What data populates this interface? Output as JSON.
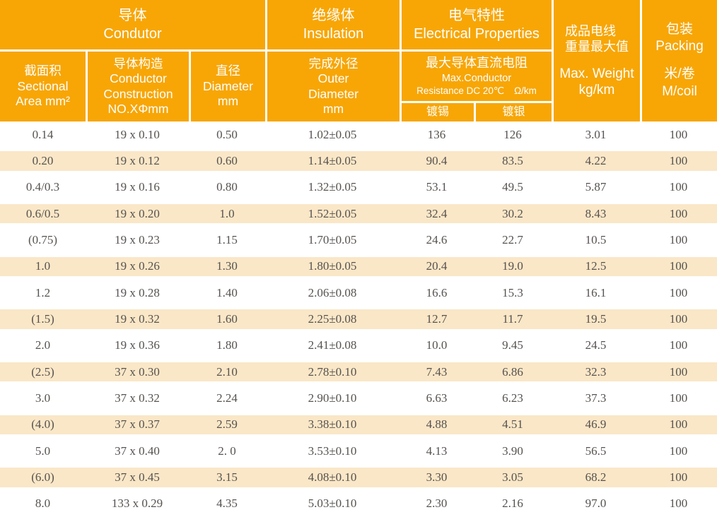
{
  "colors": {
    "accent": "#f7a606",
    "row_shade": "#fae7c7",
    "data_text": "#56524f",
    "header_text": "#ffffff"
  },
  "header": {
    "conductor": {
      "zh": "导体",
      "en": "Condutor"
    },
    "insulation": {
      "zh": "绝缘体",
      "en": "Insulation"
    },
    "electrical": {
      "zh": "电气特性",
      "en": "Electrical Properties"
    },
    "weight": {
      "zh1": "成品电线",
      "zh2": "重量最大值",
      "en1": "Max. Weight",
      "en2": "kg/km"
    },
    "packing": {
      "zh": "包装",
      "en": "Packing",
      "unit_zh": "米/卷",
      "unit_en": "M/coil"
    },
    "sectional": {
      "zh": "截面积",
      "en1": "Sectional",
      "en2": "Area mm²"
    },
    "construction": {
      "zh": "导体构造",
      "en1": "Conductor",
      "en2": "Construction",
      "en3": "NO.XΦmm"
    },
    "diameter": {
      "zh": "直径",
      "en1": "Diameter",
      "en2": "mm"
    },
    "outer": {
      "zh": "完成外径",
      "en1": "Outer",
      "en2": "Diameter",
      "en3": "mm"
    },
    "resistance": {
      "zh": "最大导体直流电阻",
      "en1": "Max.Conductor",
      "en2": "Resistance DC 20℃",
      "unit": "Ω/km"
    },
    "tin": "镀锡",
    "silver": "镀银"
  },
  "table": {
    "columns": [
      "Sectional Area mm²",
      "Conductor Construction NO.XΦmm",
      "Diameter mm",
      "Outer Diameter mm",
      "Resistance tinned Ω/km",
      "Resistance silver-plated Ω/km",
      "Max. Weight kg/km",
      "M/coil"
    ],
    "rows": [
      [
        "0.14",
        "19 x 0.10",
        "0.50",
        "1.02±0.05",
        "136",
        "126",
        "3.01",
        "100"
      ],
      [
        "0.20",
        "19 x 0.12",
        "0.60",
        "1.14±0.05",
        "90.4",
        "83.5",
        "4.22",
        "100"
      ],
      [
        "0.4/0.3",
        "19 x 0.16",
        "0.80",
        "1.32±0.05",
        "53.1",
        "49.5",
        "5.87",
        "100"
      ],
      [
        "0.6/0.5",
        "19 x 0.20",
        "1.0",
        "1.52±0.05",
        "32.4",
        "30.2",
        "8.43",
        "100"
      ],
      [
        "(0.75)",
        "19 x 0.23",
        "1.15",
        "1.70±0.05",
        "24.6",
        "22.7",
        "10.5",
        "100"
      ],
      [
        "1.0",
        "19 x 0.26",
        "1.30",
        "1.80±0.05",
        "20.4",
        "19.0",
        "12.5",
        "100"
      ],
      [
        "1.2",
        "19 x 0.28",
        "1.40",
        "2.06±0.08",
        "16.6",
        "15.3",
        "16.1",
        "100"
      ],
      [
        "(1.5)",
        "19 x 0.32",
        "1.60",
        "2.25±0.08",
        "12.7",
        "11.7",
        "19.5",
        "100"
      ],
      [
        "2.0",
        "19 x 0.36",
        "1.80",
        "2.41±0.08",
        "10.0",
        "9.45",
        "24.5",
        "100"
      ],
      [
        "(2.5)",
        "37 x 0.30",
        "2.10",
        "2.78±0.10",
        "7.43",
        "6.86",
        "32.3",
        "100"
      ],
      [
        "3.0",
        "37 x 0.32",
        "2.24",
        "2.90±0.10",
        "6.63",
        "6.23",
        "37.3",
        "100"
      ],
      [
        "(4.0)",
        "37 x 0.37",
        "2.59",
        "3.38±0.10",
        "4.88",
        "4.51",
        "46.9",
        "100"
      ],
      [
        "5.0",
        "37 x 0.40",
        "2. 0",
        "3.53±0.10",
        "4.13",
        "3.90",
        "56.5",
        "100"
      ],
      [
        "(6.0)",
        "37 x 0.45",
        "3.15",
        "4.08±0.10",
        "3.30",
        "3.05",
        "68.2",
        "100"
      ],
      [
        "8.0",
        "133 x 0.29",
        "4.35",
        "5.03±0.10",
        "2.30",
        "2.16",
        "97.0",
        "100"
      ]
    ]
  }
}
